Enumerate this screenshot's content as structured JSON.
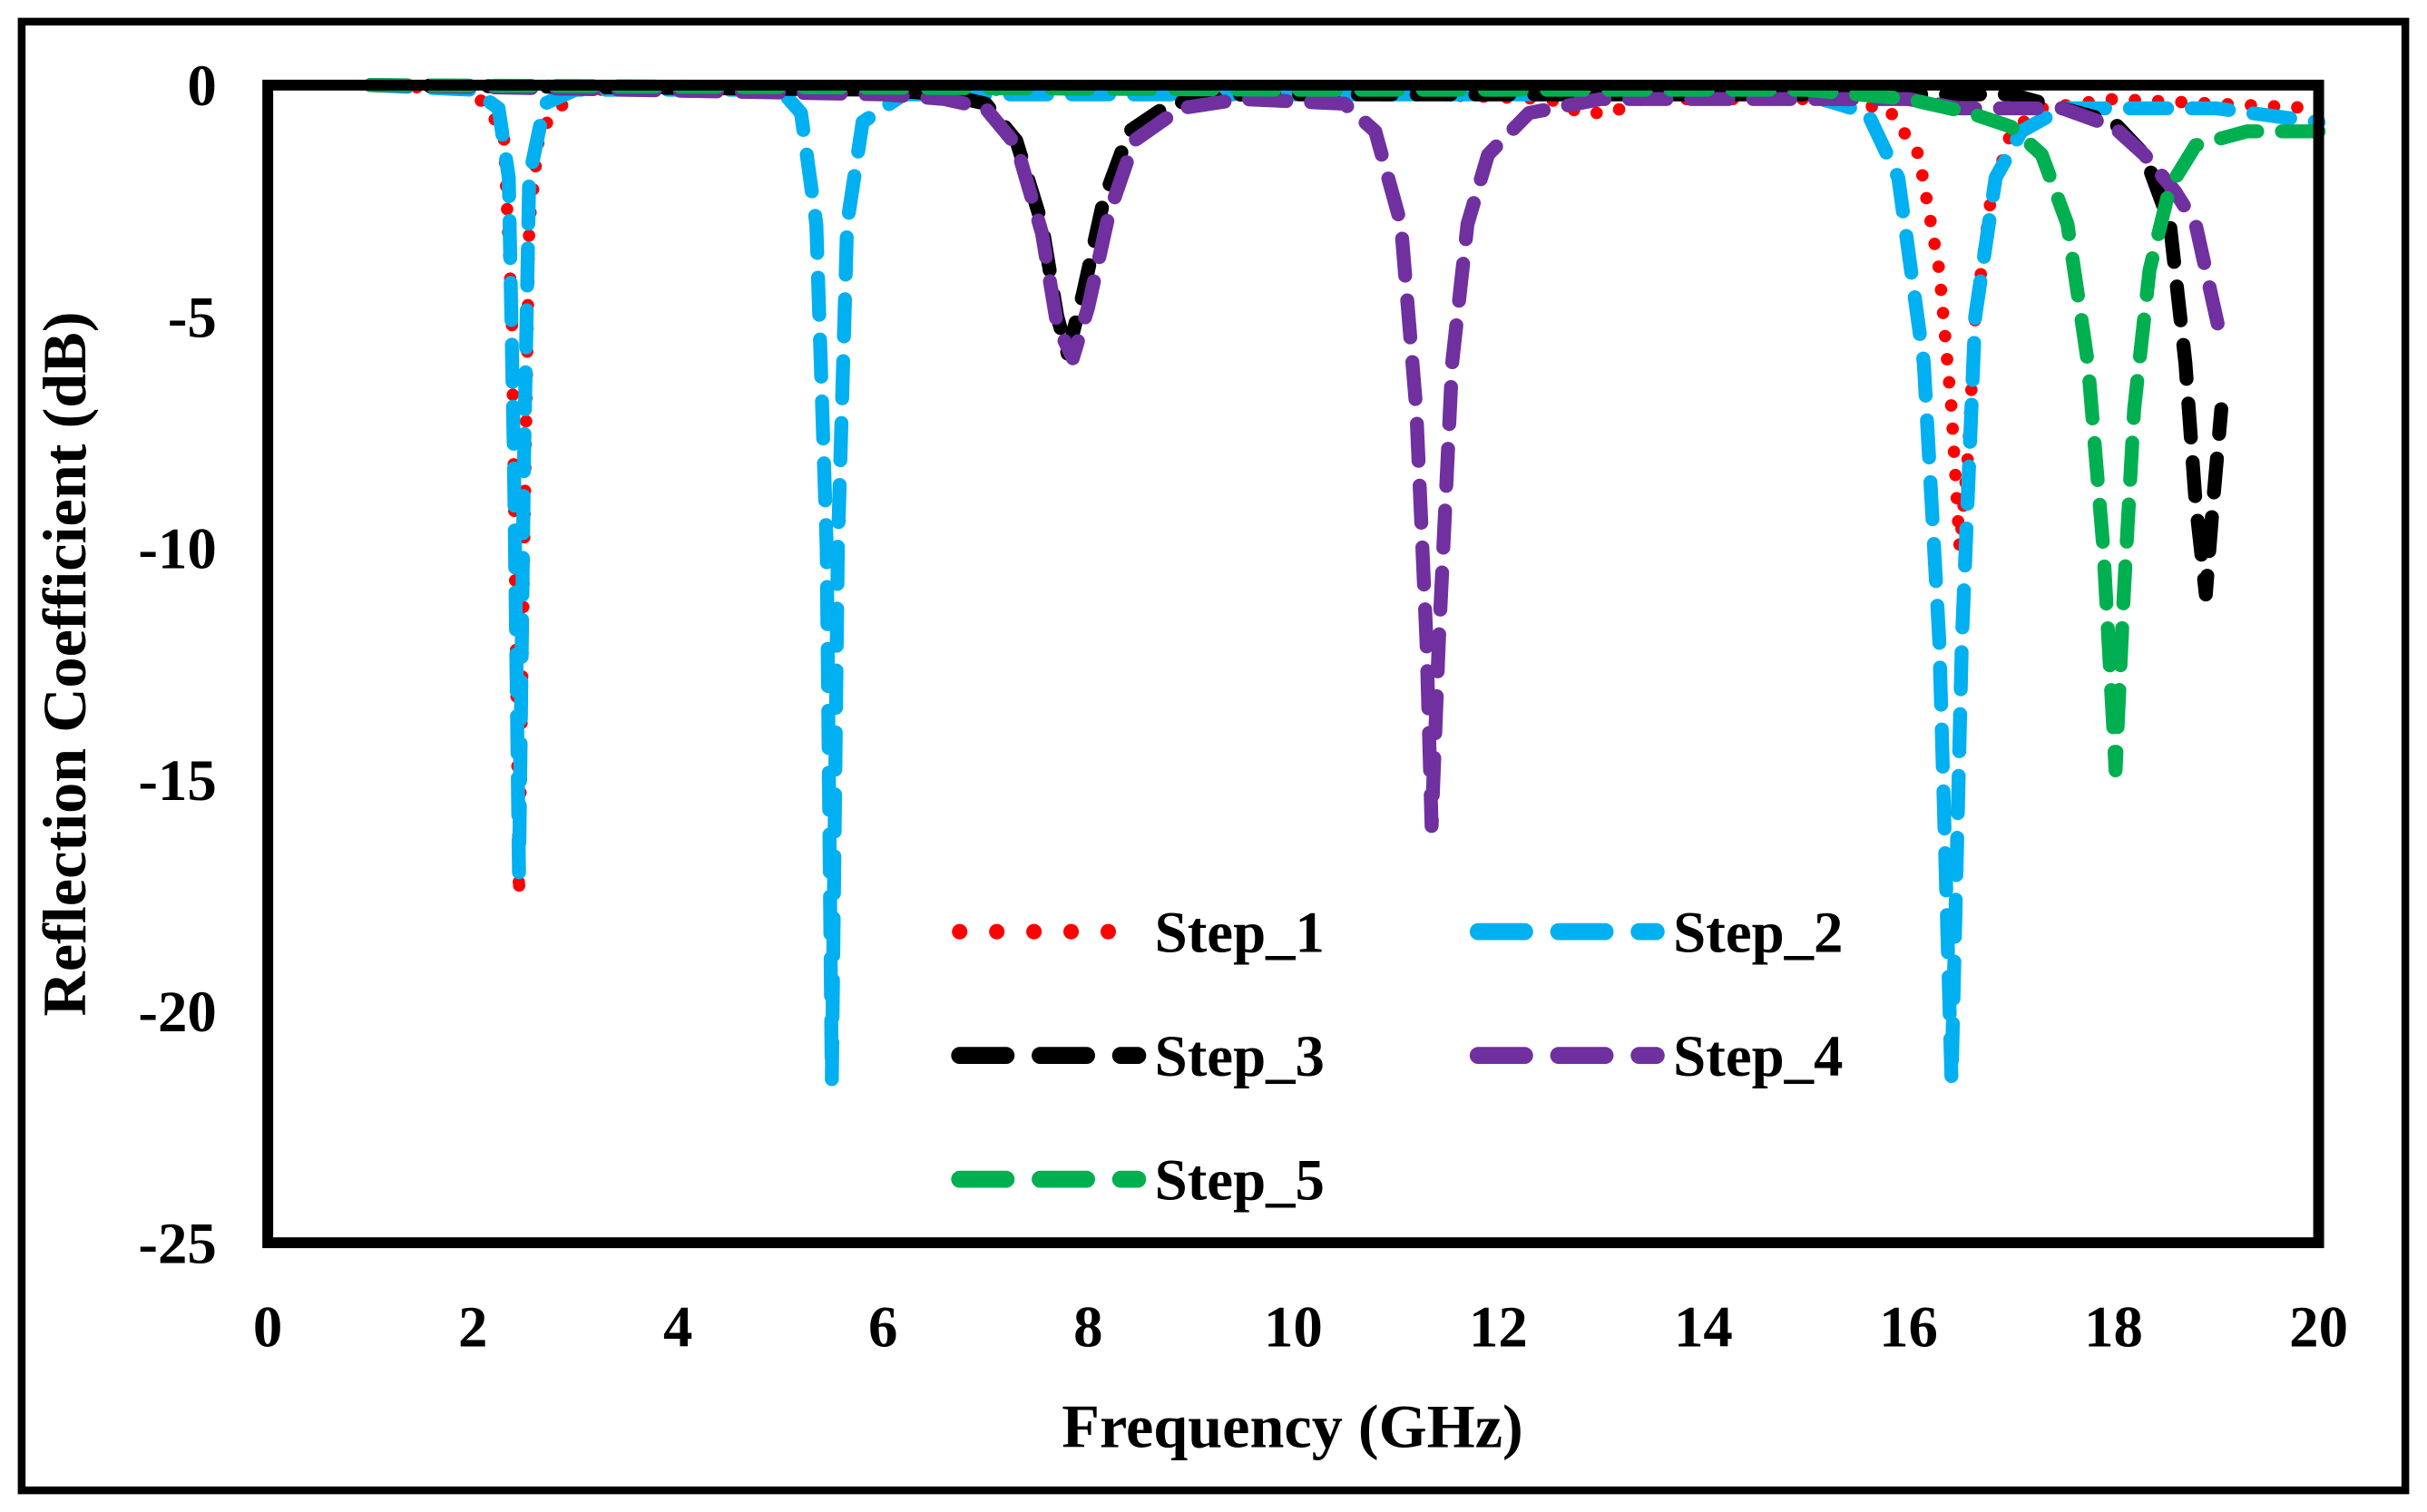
{
  "chart_data": {
    "type": "line",
    "title": "",
    "xlabel": "Frequency (GHz)",
    "ylabel": "Reflection Coefficient (dB)",
    "xlim": [
      0,
      20
    ],
    "ylim": [
      -25,
      0
    ],
    "xticks": [
      "0",
      "2",
      "4",
      "6",
      "8",
      "10",
      "12",
      "14",
      "16",
      "18",
      "20"
    ],
    "yticks": [
      "0",
      "-5",
      "-10",
      "-15",
      "-20",
      "-25"
    ],
    "grid": false,
    "legend_position": "bottom-center inside plot",
    "series": [
      {
        "name": "Step_1",
        "color": "#ff0000",
        "style": "dotted",
        "points": [
          [
            1,
            0
          ],
          [
            2,
            -0.1
          ],
          [
            2.3,
            -1
          ],
          [
            2.38,
            -5
          ],
          [
            2.42,
            -12
          ],
          [
            2.45,
            -17.5
          ],
          [
            2.5,
            -10
          ],
          [
            2.55,
            -3
          ],
          [
            2.65,
            -1
          ],
          [
            3,
            -0.1
          ],
          [
            6,
            -0.1
          ],
          [
            10,
            -0.1
          ],
          [
            12.5,
            -0.3
          ],
          [
            12.8,
            -0.6
          ],
          [
            13.1,
            -0.6
          ],
          [
            13.4,
            -0.3
          ],
          [
            15,
            -0.3
          ],
          [
            15.8,
            -0.5
          ],
          [
            16.1,
            -1.5
          ],
          [
            16.3,
            -4
          ],
          [
            16.42,
            -7
          ],
          [
            16.5,
            -10
          ],
          [
            16.58,
            -8
          ],
          [
            16.65,
            -5
          ],
          [
            16.8,
            -2.5
          ],
          [
            17,
            -1
          ],
          [
            17.3,
            -0.5
          ],
          [
            18,
            -0.3
          ],
          [
            19,
            -0.4
          ],
          [
            20,
            -0.5
          ]
        ]
      },
      {
        "name": "Step_2",
        "color": "#00b0f0",
        "style": "dash",
        "points": [
          [
            1,
            0
          ],
          [
            2,
            -0.1
          ],
          [
            2.25,
            -0.5
          ],
          [
            2.35,
            -2
          ],
          [
            2.4,
            -8
          ],
          [
            2.45,
            -17
          ],
          [
            2.5,
            -8
          ],
          [
            2.55,
            -2
          ],
          [
            2.7,
            -0.4
          ],
          [
            3,
            -0.1
          ],
          [
            5,
            -0.1
          ],
          [
            5.2,
            -0.6
          ],
          [
            5.35,
            -3
          ],
          [
            5.45,
            -10
          ],
          [
            5.5,
            -21.5
          ],
          [
            5.56,
            -10
          ],
          [
            5.65,
            -3
          ],
          [
            5.8,
            -0.8
          ],
          [
            6.2,
            -0.2
          ],
          [
            10,
            -0.2
          ],
          [
            15,
            -0.2
          ],
          [
            15.6,
            -0.6
          ],
          [
            15.9,
            -2
          ],
          [
            16.15,
            -6
          ],
          [
            16.3,
            -12
          ],
          [
            16.42,
            -21.5
          ],
          [
            16.52,
            -12
          ],
          [
            16.65,
            -5
          ],
          [
            16.85,
            -2
          ],
          [
            17.1,
            -1
          ],
          [
            17.5,
            -0.5
          ],
          [
            19,
            -0.5
          ],
          [
            20,
            -0.8
          ]
        ]
      },
      {
        "name": "Step_3",
        "color": "#000000",
        "style": "longdash",
        "points": [
          [
            1,
            0
          ],
          [
            6,
            -0.1
          ],
          [
            6.6,
            -0.2
          ],
          [
            7,
            -0.4
          ],
          [
            7.3,
            -1.2
          ],
          [
            7.55,
            -3
          ],
          [
            7.7,
            -5
          ],
          [
            7.8,
            -5.8
          ],
          [
            7.95,
            -4.5
          ],
          [
            8.15,
            -2.5
          ],
          [
            8.4,
            -1
          ],
          [
            8.8,
            -0.4
          ],
          [
            9.5,
            -0.2
          ],
          [
            12,
            -0.2
          ],
          [
            17,
            -0.2
          ],
          [
            17.5,
            -0.5
          ],
          [
            18,
            -0.8
          ],
          [
            18.3,
            -1.5
          ],
          [
            18.55,
            -3
          ],
          [
            18.7,
            -6
          ],
          [
            18.8,
            -9
          ],
          [
            18.9,
            -11
          ],
          [
            18.97,
            -9
          ],
          [
            19.05,
            -7
          ]
        ]
      },
      {
        "name": "Step_4",
        "color": "#7030a0",
        "style": "dash",
        "points": [
          [
            1,
            0
          ],
          [
            6,
            -0.2
          ],
          [
            6.6,
            -0.3
          ],
          [
            7,
            -0.5
          ],
          [
            7.3,
            -1.3
          ],
          [
            7.55,
            -3.2
          ],
          [
            7.7,
            -5.2
          ],
          [
            7.85,
            -5.9
          ],
          [
            8,
            -4.8
          ],
          [
            8.2,
            -2.8
          ],
          [
            8.45,
            -1.2
          ],
          [
            8.9,
            -0.5
          ],
          [
            9.5,
            -0.3
          ],
          [
            10.5,
            -0.4
          ],
          [
            10.8,
            -1
          ],
          [
            11.05,
            -3
          ],
          [
            11.2,
            -7
          ],
          [
            11.3,
            -12
          ],
          [
            11.35,
            -16
          ],
          [
            11.42,
            -12
          ],
          [
            11.55,
            -6
          ],
          [
            11.7,
            -3
          ],
          [
            11.9,
            -1.5
          ],
          [
            12.3,
            -0.6
          ],
          [
            13,
            -0.3
          ],
          [
            16,
            -0.3
          ],
          [
            16.5,
            -0.5
          ],
          [
            17.5,
            -0.5
          ],
          [
            18,
            -0.9
          ],
          [
            18.3,
            -1.5
          ],
          [
            18.6,
            -2.3
          ],
          [
            18.8,
            -3
          ],
          [
            18.95,
            -4.5
          ],
          [
            19.05,
            -5.5
          ]
        ]
      },
      {
        "name": "Step_5",
        "color": "#00b050",
        "style": "dash",
        "points": [
          [
            1,
            0
          ],
          [
            10,
            -0.1
          ],
          [
            15,
            -0.1
          ],
          [
            16,
            -0.3
          ],
          [
            16.6,
            -0.6
          ],
          [
            17,
            -0.9
          ],
          [
            17.3,
            -1.5
          ],
          [
            17.55,
            -3
          ],
          [
            17.75,
            -6
          ],
          [
            17.9,
            -10
          ],
          [
            18.02,
            -14.8
          ],
          [
            18.1,
            -11
          ],
          [
            18.2,
            -7
          ],
          [
            18.35,
            -4
          ],
          [
            18.55,
            -2.2
          ],
          [
            18.8,
            -1.3
          ],
          [
            19.3,
            -1
          ],
          [
            20,
            -1
          ]
        ]
      }
    ]
  }
}
